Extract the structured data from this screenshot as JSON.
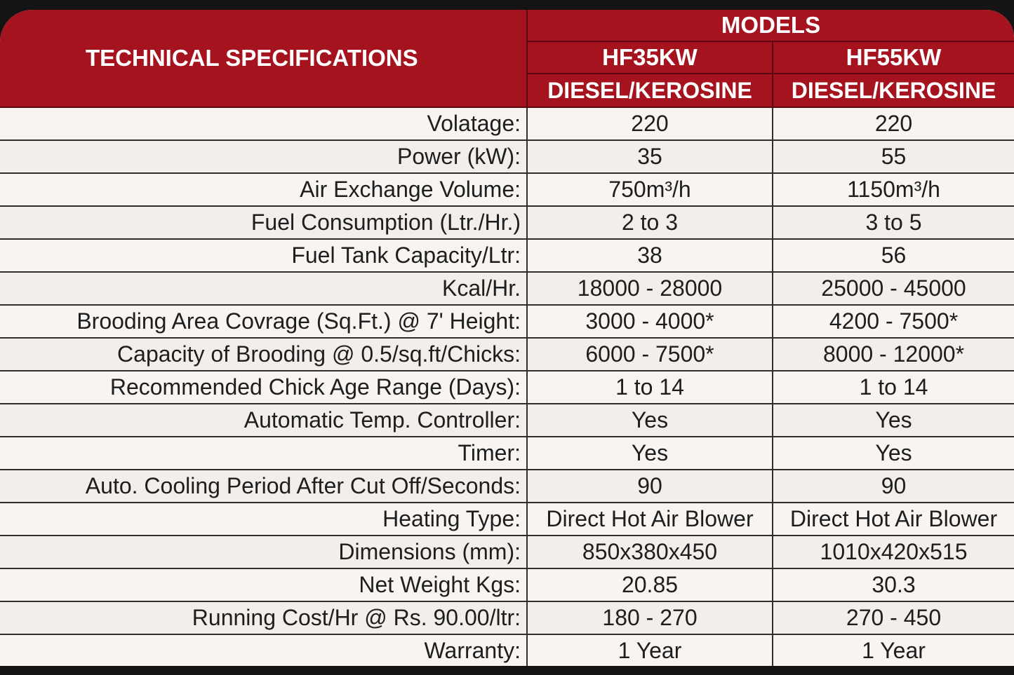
{
  "header": {
    "title": "TECHNICAL SPECIFICATIONS",
    "models_label": "MODELS",
    "models": [
      {
        "name": "HF35KW",
        "fuel": "DIESEL/KEROSINE"
      },
      {
        "name": "HF55KW",
        "fuel": "DIESEL/KEROSINE"
      }
    ]
  },
  "rows": [
    {
      "label": "Volatage:",
      "m1": "220",
      "m2": "220"
    },
    {
      "label": "Power (kW):",
      "m1": "35",
      "m2": "55"
    },
    {
      "label": "Air Exchange Volume:",
      "m1": "750m³/h",
      "m2": "1150m³/h"
    },
    {
      "label": "Fuel Consumption (Ltr./Hr.)",
      "m1": "2 to 3",
      "m2": "3 to 5"
    },
    {
      "label": "Fuel Tank Capacity/Ltr:",
      "m1": "38",
      "m2": "56"
    },
    {
      "label": "Kcal/Hr.",
      "m1": "18000 - 28000",
      "m2": "25000 - 45000"
    },
    {
      "label": "Brooding Area Covrage (Sq.Ft.) @ 7' Height:",
      "m1": "3000 - 4000*",
      "m2": "4200 - 7500*"
    },
    {
      "label": "Capacity of Brooding @ 0.5/sq.ft/Chicks:",
      "m1": "6000 - 7500*",
      "m2": "8000 - 12000*"
    },
    {
      "label": "Recommended Chick Age Range (Days):",
      "m1": "1 to 14",
      "m2": "1 to 14"
    },
    {
      "label": "Automatic Temp. Controller:",
      "m1": "Yes",
      "m2": "Yes"
    },
    {
      "label": "Timer:",
      "m1": "Yes",
      "m2": "Yes"
    },
    {
      "label": "Auto. Cooling Period After Cut Off/Seconds:",
      "m1": "90",
      "m2": "90"
    },
    {
      "label": "Heating Type:",
      "m1": "Direct Hot Air Blower",
      "m2": "Direct Hot Air Blower"
    },
    {
      "label": "Dimensions (mm):",
      "m1": "850x380x450",
      "m2": "1010x420x515"
    },
    {
      "label": "Net Weight Kgs:",
      "m1": "20.85",
      "m2": "30.3"
    },
    {
      "label": "Running Cost/Hr @ Rs. 90.00/ltr:",
      "m1": "180 - 270",
      "m2": "270 - 450"
    },
    {
      "label": "Warranty:",
      "m1": "1 Year",
      "m2": "1 Year"
    }
  ],
  "colors": {
    "header_red": "#a5141e",
    "header_text": "#ffffff",
    "body_bg": "#f6f3f0",
    "grid_line": "#2e2e2e"
  }
}
